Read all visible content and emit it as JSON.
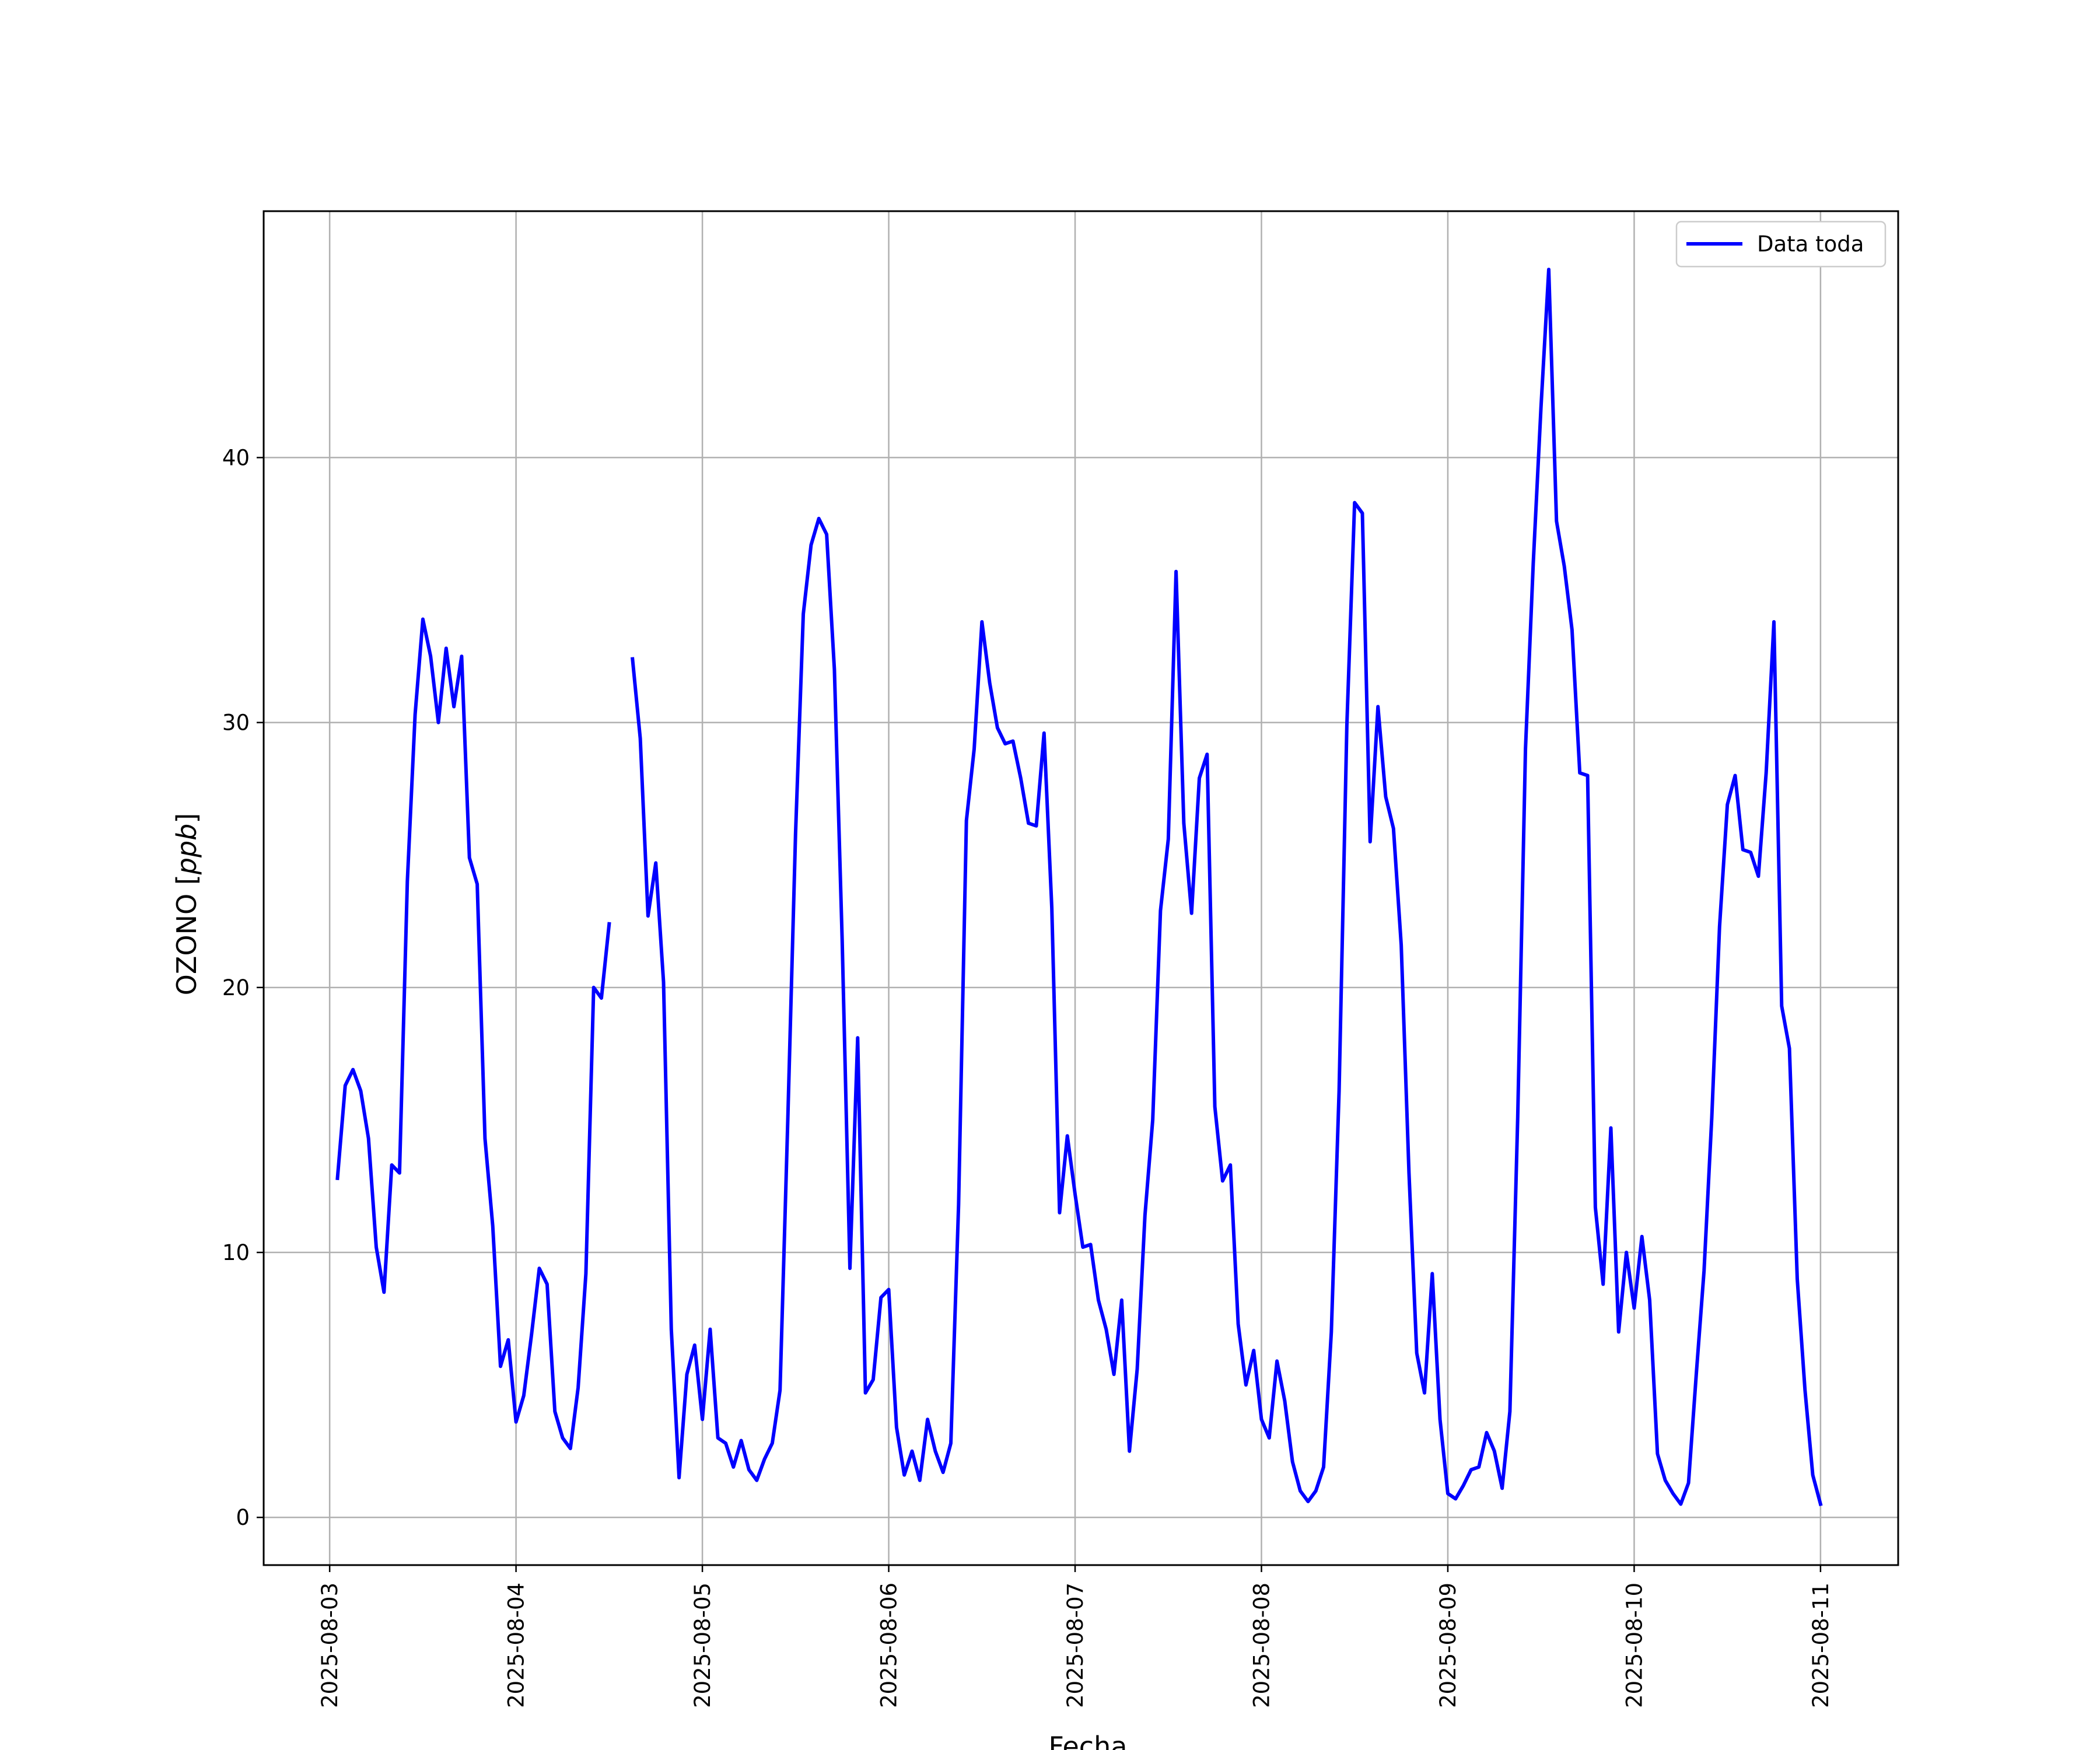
{
  "chart_data": {
    "type": "line",
    "xlabel": "Fecha",
    "ylabel": "OZONO [ppb]",
    "ylabel_unit": "ppb",
    "ylabel_prefix": "OZONO",
    "xlim": [
      "2025-08-02T15:30",
      "2025-08-11T10:00"
    ],
    "ylim": [
      -1.8,
      49.3
    ],
    "yticks": [
      0,
      10,
      20,
      30,
      40
    ],
    "xticks": [
      "2025-08-03",
      "2025-08-04",
      "2025-08-05",
      "2025-08-06",
      "2025-08-07",
      "2025-08-08",
      "2025-08-09",
      "2025-08-10",
      "2025-08-11"
    ],
    "grid": true,
    "legend_position": "top-right",
    "series": [
      {
        "name": "Data toda",
        "color": "#0000ff",
        "points": [
          [
            "2025-08-03T01:00",
            12.8
          ],
          [
            "2025-08-03T02:00",
            16.3
          ],
          [
            "2025-08-03T03:00",
            16.9
          ],
          [
            "2025-08-03T04:00",
            16.1
          ],
          [
            "2025-08-03T05:00",
            14.3
          ],
          [
            "2025-08-03T06:00",
            10.2
          ],
          [
            "2025-08-03T07:00",
            8.5
          ],
          [
            "2025-08-03T08:00",
            13.3
          ],
          [
            "2025-08-03T09:00",
            13.0
          ],
          [
            "2025-08-03T10:00",
            24.0
          ],
          [
            "2025-08-03T11:00",
            30.3
          ],
          [
            "2025-08-03T12:00",
            33.9
          ],
          [
            "2025-08-03T13:00",
            32.5
          ],
          [
            "2025-08-03T14:00",
            30.0
          ],
          [
            "2025-08-03T15:00",
            32.8
          ],
          [
            "2025-08-03T16:00",
            30.6
          ],
          [
            "2025-08-03T17:00",
            32.5
          ],
          [
            "2025-08-03T18:00",
            24.9
          ],
          [
            "2025-08-03T19:00",
            23.9
          ],
          [
            "2025-08-03T20:00",
            14.3
          ],
          [
            "2025-08-03T21:00",
            11.0
          ],
          [
            "2025-08-03T22:00",
            5.7
          ],
          [
            "2025-08-03T23:00",
            6.7
          ],
          [
            "2025-08-04T00:00",
            3.6
          ],
          [
            "2025-08-04T01:00",
            4.6
          ],
          [
            "2025-08-04T02:00",
            6.9
          ],
          [
            "2025-08-04T03:00",
            9.4
          ],
          [
            "2025-08-04T04:00",
            8.8
          ],
          [
            "2025-08-04T05:00",
            4.0
          ],
          [
            "2025-08-04T06:00",
            3.0
          ],
          [
            "2025-08-04T07:00",
            2.6
          ],
          [
            "2025-08-04T08:00",
            4.9
          ],
          [
            "2025-08-04T09:00",
            9.2
          ],
          [
            "2025-08-04T10:00",
            20.0
          ],
          [
            "2025-08-04T11:00",
            19.6
          ],
          [
            "2025-08-04T12:00",
            22.4
          ],
          null,
          [
            "2025-08-04T15:00",
            32.4
          ],
          [
            "2025-08-04T16:00",
            29.4
          ],
          [
            "2025-08-04T17:00",
            22.7
          ],
          [
            "2025-08-04T18:00",
            24.7
          ],
          [
            "2025-08-04T19:00",
            20.2
          ],
          [
            "2025-08-04T20:00",
            7.1
          ],
          [
            "2025-08-04T21:00",
            1.5
          ],
          [
            "2025-08-04T22:00",
            5.4
          ],
          [
            "2025-08-04T23:00",
            6.5
          ],
          [
            "2025-08-05T00:00",
            3.7
          ],
          [
            "2025-08-05T01:00",
            7.1
          ],
          [
            "2025-08-05T02:00",
            3.0
          ],
          [
            "2025-08-05T03:00",
            2.8
          ],
          [
            "2025-08-05T04:00",
            1.9
          ],
          [
            "2025-08-05T05:00",
            2.9
          ],
          [
            "2025-08-05T06:00",
            1.8
          ],
          [
            "2025-08-05T07:00",
            1.4
          ],
          [
            "2025-08-05T08:00",
            2.2
          ],
          [
            "2025-08-05T09:00",
            2.8
          ],
          [
            "2025-08-05T10:00",
            4.8
          ],
          [
            "2025-08-05T11:00",
            15.0
          ],
          [
            "2025-08-05T12:00",
            25.8
          ],
          [
            "2025-08-05T13:00",
            34.1
          ],
          [
            "2025-08-05T14:00",
            36.7
          ],
          [
            "2025-08-05T15:00",
            37.7
          ],
          [
            "2025-08-05T16:00",
            37.1
          ],
          [
            "2025-08-05T17:00",
            32.0
          ],
          [
            "2025-08-05T18:00",
            21.8
          ],
          [
            "2025-08-05T19:00",
            9.4
          ],
          [
            "2025-08-05T20:00",
            18.1
          ],
          [
            "2025-08-05T21:00",
            4.7
          ],
          [
            "2025-08-05T22:00",
            5.2
          ],
          [
            "2025-08-05T23:00",
            8.3
          ],
          [
            "2025-08-06T00:00",
            8.6
          ],
          [
            "2025-08-06T01:00",
            3.4
          ],
          [
            "2025-08-06T02:00",
            1.6
          ],
          [
            "2025-08-06T03:00",
            2.5
          ],
          [
            "2025-08-06T04:00",
            1.4
          ],
          [
            "2025-08-06T05:00",
            3.7
          ],
          [
            "2025-08-06T06:00",
            2.5
          ],
          [
            "2025-08-06T07:00",
            1.7
          ],
          [
            "2025-08-06T08:00",
            2.8
          ],
          [
            "2025-08-06T09:00",
            11.8
          ],
          [
            "2025-08-06T10:00",
            26.3
          ],
          [
            "2025-08-06T11:00",
            29.0
          ],
          [
            "2025-08-06T12:00",
            33.8
          ],
          [
            "2025-08-06T13:00",
            31.5
          ],
          [
            "2025-08-06T14:00",
            29.8
          ],
          [
            "2025-08-06T15:00",
            29.2
          ],
          [
            "2025-08-06T16:00",
            29.3
          ],
          [
            "2025-08-06T17:00",
            27.9
          ],
          [
            "2025-08-06T18:00",
            26.2
          ],
          [
            "2025-08-06T19:00",
            26.1
          ],
          [
            "2025-08-06T20:00",
            29.6
          ],
          [
            "2025-08-06T21:00",
            23.0
          ],
          [
            "2025-08-06T22:00",
            11.5
          ],
          [
            "2025-08-06T23:00",
            14.4
          ],
          [
            "2025-08-07T00:00",
            12.2
          ],
          [
            "2025-08-07T01:00",
            10.2
          ],
          [
            "2025-08-07T02:00",
            10.3
          ],
          [
            "2025-08-07T03:00",
            8.2
          ],
          [
            "2025-08-07T04:00",
            7.1
          ],
          [
            "2025-08-07T05:00",
            5.4
          ],
          [
            "2025-08-07T06:00",
            8.2
          ],
          [
            "2025-08-07T07:00",
            2.5
          ],
          [
            "2025-08-07T08:00",
            5.6
          ],
          [
            "2025-08-07T09:00",
            11.4
          ],
          [
            "2025-08-07T10:00",
            15.0
          ],
          [
            "2025-08-07T11:00",
            22.9
          ],
          [
            "2025-08-07T12:00",
            25.6
          ],
          [
            "2025-08-07T13:00",
            35.7
          ],
          [
            "2025-08-07T14:00",
            26.2
          ],
          [
            "2025-08-07T15:00",
            22.8
          ],
          [
            "2025-08-07T16:00",
            27.9
          ],
          [
            "2025-08-07T17:00",
            28.8
          ],
          [
            "2025-08-07T18:00",
            15.5
          ],
          [
            "2025-08-07T19:00",
            12.7
          ],
          [
            "2025-08-07T20:00",
            13.3
          ],
          [
            "2025-08-07T21:00",
            7.3
          ],
          [
            "2025-08-07T22:00",
            5.0
          ],
          [
            "2025-08-07T23:00",
            6.3
          ],
          [
            "2025-08-08T00:00",
            3.7
          ],
          [
            "2025-08-08T01:00",
            3.0
          ],
          [
            "2025-08-08T02:00",
            5.9
          ],
          [
            "2025-08-08T03:00",
            4.4
          ],
          [
            "2025-08-08T04:00",
            2.1
          ],
          [
            "2025-08-08T05:00",
            1.0
          ],
          [
            "2025-08-08T06:00",
            0.6
          ],
          [
            "2025-08-08T07:00",
            1.0
          ],
          [
            "2025-08-08T08:00",
            1.9
          ],
          [
            "2025-08-08T09:00",
            7.0
          ],
          [
            "2025-08-08T10:00",
            16.1
          ],
          [
            "2025-08-08T11:00",
            29.9
          ],
          [
            "2025-08-08T12:00",
            38.3
          ],
          [
            "2025-08-08T13:00",
            37.9
          ],
          [
            "2025-08-08T14:00",
            25.5
          ],
          [
            "2025-08-08T15:00",
            30.6
          ],
          [
            "2025-08-08T16:00",
            27.2
          ],
          [
            "2025-08-08T17:00",
            26.0
          ],
          [
            "2025-08-08T18:00",
            21.6
          ],
          [
            "2025-08-08T19:00",
            13.0
          ],
          [
            "2025-08-08T20:00",
            6.2
          ],
          [
            "2025-08-08T21:00",
            4.7
          ],
          [
            "2025-08-08T22:00",
            9.2
          ],
          [
            "2025-08-08T23:00",
            3.7
          ],
          [
            "2025-08-09T00:00",
            0.9
          ],
          [
            "2025-08-09T01:00",
            0.7
          ],
          [
            "2025-08-09T02:00",
            1.2
          ],
          [
            "2025-08-09T03:00",
            1.8
          ],
          [
            "2025-08-09T04:00",
            1.9
          ],
          [
            "2025-08-09T05:00",
            3.2
          ],
          [
            "2025-08-09T06:00",
            2.5
          ],
          [
            "2025-08-09T07:00",
            1.1
          ],
          [
            "2025-08-09T08:00",
            4.0
          ],
          [
            "2025-08-09T09:00",
            15.1
          ],
          [
            "2025-08-09T10:00",
            29.0
          ],
          [
            "2025-08-09T11:00",
            36.0
          ],
          [
            "2025-08-09T12:00",
            41.9
          ],
          [
            "2025-08-09T13:00",
            47.1
          ],
          [
            "2025-08-09T14:00",
            37.6
          ],
          [
            "2025-08-09T15:00",
            35.9
          ],
          [
            "2025-08-09T16:00",
            33.5
          ],
          [
            "2025-08-09T17:00",
            28.1
          ],
          [
            "2025-08-09T18:00",
            28.0
          ],
          [
            "2025-08-09T19:00",
            11.7
          ],
          [
            "2025-08-09T20:00",
            8.8
          ],
          [
            "2025-08-09T21:00",
            14.7
          ],
          [
            "2025-08-09T22:00",
            7.0
          ],
          [
            "2025-08-09T23:00",
            10.0
          ],
          [
            "2025-08-10T00:00",
            7.9
          ],
          [
            "2025-08-10T01:00",
            10.6
          ],
          [
            "2025-08-10T02:00",
            8.2
          ],
          [
            "2025-08-10T03:00",
            2.4
          ],
          [
            "2025-08-10T04:00",
            1.4
          ],
          [
            "2025-08-10T05:00",
            0.9
          ],
          [
            "2025-08-10T06:00",
            0.5
          ],
          [
            "2025-08-10T07:00",
            1.3
          ],
          [
            "2025-08-10T08:00",
            5.4
          ],
          [
            "2025-08-10T09:00",
            9.3
          ],
          [
            "2025-08-10T10:00",
            15.1
          ],
          [
            "2025-08-10T11:00",
            22.3
          ],
          [
            "2025-08-10T12:00",
            26.9
          ],
          [
            "2025-08-10T13:00",
            28.0
          ],
          [
            "2025-08-10T14:00",
            25.2
          ],
          [
            "2025-08-10T15:00",
            25.1
          ],
          [
            "2025-08-10T16:00",
            24.2
          ],
          [
            "2025-08-10T17:00",
            28.1
          ],
          [
            "2025-08-10T18:00",
            33.8
          ],
          [
            "2025-08-10T19:00",
            19.3
          ],
          [
            "2025-08-10T20:00",
            17.7
          ],
          [
            "2025-08-10T21:00",
            9.0
          ],
          [
            "2025-08-10T22:00",
            4.8
          ],
          [
            "2025-08-10T23:00",
            1.6
          ],
          [
            "2025-08-11T00:00",
            0.5
          ]
        ]
      }
    ]
  }
}
